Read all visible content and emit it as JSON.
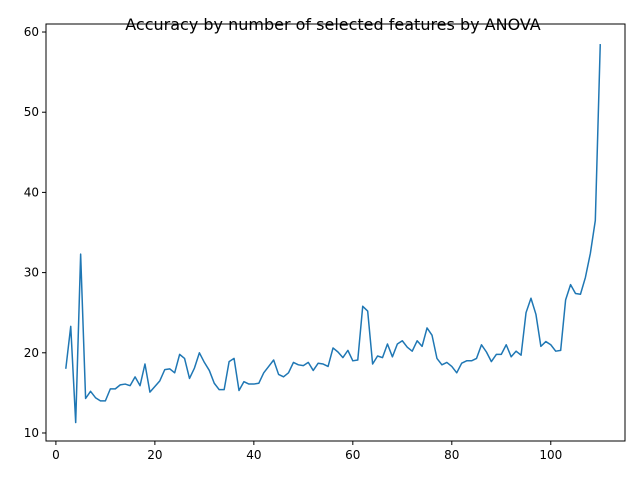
{
  "chart_data": {
    "type": "line",
    "title": "Accuracy by number of selected features by ANOVA",
    "xlabel": "",
    "ylabel": "",
    "xlim": [
      -2,
      115
    ],
    "ylim": [
      9,
      61
    ],
    "xticks": [
      0,
      20,
      40,
      60,
      80,
      100
    ],
    "yticks": [
      10,
      20,
      30,
      40,
      50,
      60
    ],
    "grid": false,
    "legend": "none",
    "line_color": "#1f77b4",
    "x_start": 2,
    "series": [
      {
        "values": [
          18.0,
          23.3,
          11.3,
          32.3,
          14.3,
          15.2,
          14.4,
          14.0,
          14.0,
          15.5,
          15.5,
          16.0,
          16.1,
          15.9,
          17.0,
          15.9,
          18.6,
          15.1,
          15.8,
          16.5,
          17.9,
          18.0,
          17.5,
          19.8,
          19.3,
          16.8,
          18.1,
          20.0,
          18.8,
          17.8,
          16.2,
          15.4,
          15.4,
          18.9,
          19.3,
          15.3,
          16.4,
          16.1,
          16.1,
          16.2,
          17.5,
          18.3,
          19.1,
          17.3,
          17.0,
          17.5,
          18.8,
          18.5,
          18.4,
          18.8,
          17.8,
          18.7,
          18.6,
          18.3,
          20.6,
          20.1,
          19.4,
          20.3,
          19.0,
          19.1,
          25.8,
          25.2,
          18.6,
          19.6,
          19.4,
          21.1,
          19.5,
          21.1,
          21.5,
          20.7,
          20.2,
          21.5,
          20.8,
          23.1,
          22.2,
          19.3,
          18.5,
          18.8,
          18.3,
          17.5,
          18.7,
          19.0,
          19.0,
          19.3,
          21.0,
          20.1,
          18.9,
          19.8,
          19.8,
          21.0,
          19.5,
          20.2,
          19.7,
          25.0,
          26.8,
          24.8,
          20.8,
          21.4,
          21.0,
          20.2,
          20.3,
          26.6,
          28.5,
          27.4,
          27.3,
          29.4,
          32.4,
          36.5,
          58.5
        ]
      }
    ]
  }
}
